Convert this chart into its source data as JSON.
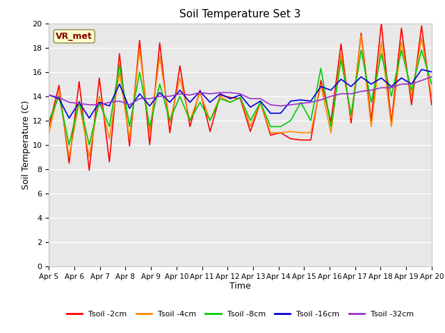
{
  "title": "Soil Temperature Set 3",
  "xlabel": "Time",
  "ylabel": "Soil Temperature (C)",
  "ylim": [
    0,
    20
  ],
  "annotation_text": "VR_met",
  "annotation_bg": "#ffffcc",
  "annotation_border": "#999966",
  "bg_color": "#e8e8e8",
  "legend_labels": [
    "Tsoil -2cm",
    "Tsoil -4cm",
    "Tsoil -8cm",
    "Tsoil -16cm",
    "Tsoil -32cm"
  ],
  "line_colors": [
    "#ff0000",
    "#ff8800",
    "#00cc00",
    "#0000dd",
    "#9933cc"
  ],
  "line_widths": [
    1.2,
    1.2,
    1.2,
    1.2,
    1.2
  ],
  "x_tick_labels": [
    "Apr 5",
    "Apr 6",
    "Apr 7",
    "Apr 8",
    "Apr 9",
    "Apr 10",
    "Apr 11",
    "Apr 12",
    "Apr 13",
    "Apr 14",
    "Apr 15",
    "Apr 16",
    "Apr 17",
    "Apr 18",
    "Apr 19",
    "Apr 20"
  ],
  "tsoil_2cm": [
    11.5,
    14.9,
    8.5,
    15.2,
    7.9,
    15.5,
    8.6,
    17.5,
    9.9,
    18.6,
    10.0,
    18.4,
    11.0,
    16.5,
    11.5,
    14.5,
    11.1,
    14.1,
    13.9,
    13.8,
    11.1,
    13.5,
    10.8,
    11.0,
    10.5,
    10.4,
    10.4,
    15.3,
    11.9,
    18.3,
    11.8,
    19.2,
    12.0,
    20.0,
    11.8,
    19.6,
    13.3,
    19.8,
    13.3
  ],
  "tsoil_4cm": [
    11.0,
    14.5,
    9.0,
    13.5,
    9.0,
    14.0,
    10.5,
    16.0,
    10.5,
    17.9,
    11.0,
    17.3,
    11.8,
    15.5,
    12.0,
    14.3,
    12.0,
    14.0,
    13.5,
    13.9,
    11.5,
    13.5,
    11.0,
    11.0,
    11.1,
    11.0,
    11.0,
    14.9,
    11.0,
    17.5,
    12.2,
    19.0,
    11.5,
    18.5,
    11.5,
    18.5,
    14.0,
    18.8,
    14.0
  ],
  "tsoil_8cm": [
    12.0,
    14.0,
    10.0,
    13.6,
    10.0,
    13.5,
    11.5,
    16.6,
    11.5,
    16.0,
    11.5,
    15.0,
    12.0,
    14.0,
    12.0,
    13.5,
    12.0,
    13.8,
    13.5,
    13.9,
    12.0,
    13.5,
    11.5,
    11.5,
    12.0,
    13.5,
    12.0,
    16.3,
    11.5,
    17.0,
    12.5,
    17.8,
    13.5,
    17.5,
    14.0,
    17.8,
    14.5,
    17.8,
    15.0
  ],
  "tsoil_16cm": [
    14.1,
    13.8,
    12.2,
    13.5,
    12.2,
    13.5,
    13.2,
    15.0,
    13.0,
    14.2,
    13.2,
    14.3,
    13.5,
    14.5,
    13.5,
    14.4,
    13.5,
    14.2,
    13.8,
    14.1,
    13.1,
    13.6,
    12.6,
    12.6,
    13.6,
    13.7,
    13.6,
    14.8,
    14.5,
    15.4,
    14.8,
    15.6,
    15.0,
    15.5,
    14.8,
    15.5,
    15.0,
    16.2,
    16.0
  ],
  "tsoil_32cm": [
    14.1,
    13.9,
    13.5,
    13.4,
    13.3,
    13.3,
    13.5,
    13.6,
    13.3,
    13.8,
    13.8,
    14.0,
    14.0,
    14.2,
    14.1,
    14.3,
    14.2,
    14.3,
    14.3,
    14.2,
    13.8,
    13.8,
    13.3,
    13.2,
    13.3,
    13.4,
    13.5,
    13.7,
    14.0,
    14.2,
    14.2,
    14.4,
    14.5,
    14.7,
    14.7,
    15.0,
    15.0,
    15.3,
    15.6
  ]
}
